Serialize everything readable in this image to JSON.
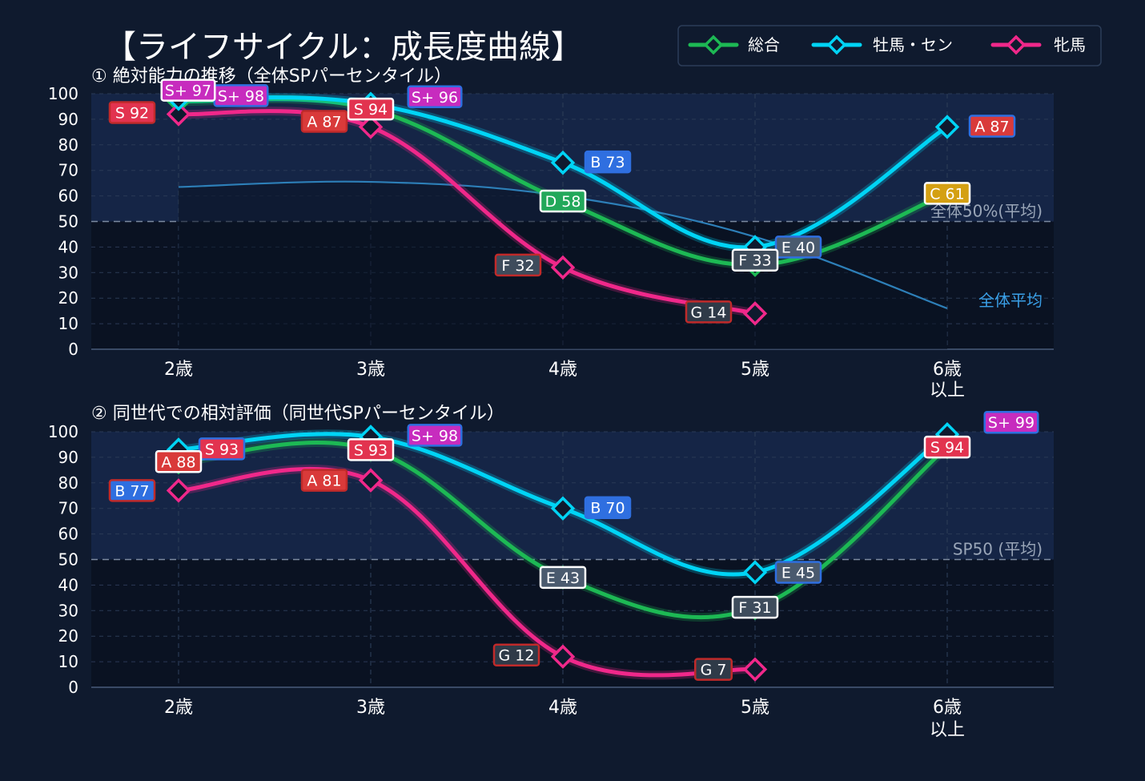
{
  "title": "【ライフサイクル：成長度曲線】",
  "legend": [
    {
      "name": "総合",
      "color": "#1db954"
    },
    {
      "name": "牡馬・セン",
      "color": "#00d4f5"
    },
    {
      "name": "牝馬",
      "color": "#f0288a"
    }
  ],
  "colors": {
    "background": "#0f1a2e",
    "plot_upper": "#152546",
    "plot_lower": "#0a1222",
    "grade_S_plus": "#c72cbe",
    "grade_S": "#e2334f",
    "grade_A": "#d93a3a",
    "grade_B": "#2f6fe0",
    "grade_C": "#d4a012",
    "grade_D": "#22a85a",
    "grade_E": "#4a5a6e",
    "grade_F": "#3e4c5c",
    "grade_G": "#2f3a48"
  },
  "chart_data": [
    {
      "type": "line",
      "title": "① 絶対能力の推移（全体SPパーセンタイル）",
      "categories": [
        "2歳",
        "3歳",
        "4歳",
        "5歳",
        "6歳\n以上"
      ],
      "ylim": [
        0,
        100
      ],
      "yticks": [
        0,
        10,
        20,
        30,
        40,
        50,
        60,
        70,
        80,
        90,
        100
      ],
      "reference_line": {
        "value": 50,
        "label": "全体50%(平均)"
      },
      "average_series": {
        "name": "全体平均",
        "values": [
          63.5,
          65.5,
          60,
          44,
          16
        ]
      },
      "series": [
        {
          "name": "総合",
          "values": [
            97,
            94,
            58,
            33,
            61
          ],
          "labels": [
            "S+ 97",
            "S 94",
            "D 58",
            "F 33",
            "C 61"
          ]
        },
        {
          "name": "牡馬・セン",
          "values": [
            98,
            96,
            73,
            40,
            87
          ],
          "labels": [
            "S+ 98",
            "S+ 96",
            "B 73",
            "E 40",
            "A 87"
          ]
        },
        {
          "name": "牝馬",
          "values": [
            92,
            87,
            32,
            14,
            null
          ],
          "labels": [
            "S 92",
            "A 87",
            "F 32",
            "G 14",
            ""
          ]
        }
      ]
    },
    {
      "type": "line",
      "title": "② 同世代での相対評価（同世代SPパーセンタイル）",
      "categories": [
        "2歳",
        "3歳",
        "4歳",
        "5歳",
        "6歳\n以上"
      ],
      "ylim": [
        0,
        100
      ],
      "yticks": [
        0,
        10,
        20,
        30,
        40,
        50,
        60,
        70,
        80,
        90,
        100
      ],
      "reference_line": {
        "value": 50,
        "label": "SP50 (平均)"
      },
      "series": [
        {
          "name": "総合",
          "values": [
            88,
            93,
            43,
            31,
            94
          ],
          "labels": [
            "A 88",
            "S 93",
            "E 43",
            "F 31",
            "S 94"
          ]
        },
        {
          "name": "牡馬・セン",
          "values": [
            93,
            98,
            70,
            45,
            99
          ],
          "labels": [
            "S 93",
            "S+ 98",
            "B 70",
            "E 45",
            "S+ 99"
          ]
        },
        {
          "name": "牝馬",
          "values": [
            77,
            81,
            12,
            7,
            null
          ],
          "labels": [
            "B 77",
            "A 81",
            "G 12",
            "G 7",
            ""
          ]
        }
      ]
    }
  ]
}
